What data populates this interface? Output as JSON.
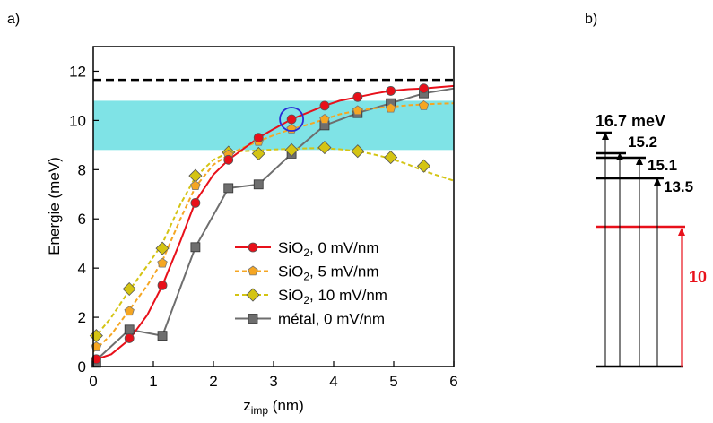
{
  "panel_a_label": "a)",
  "panel_b_label": "b)",
  "chart_data": {
    "type": "line",
    "xlabel_main": "z",
    "xlabel_sub": "imp",
    "xlabel_unit": " (nm)",
    "ylabel": "Energie (meV)",
    "xlim": [
      0,
      6
    ],
    "ylim": [
      0,
      13
    ],
    "xticks": [
      0,
      1,
      2,
      3,
      4,
      5,
      6
    ],
    "yticks": [
      0,
      2,
      4,
      6,
      8,
      10,
      12
    ],
    "grid": false,
    "legend_position": "lower-right",
    "reference_line": {
      "y": 11.65,
      "style": "dashed",
      "color": "#000000"
    },
    "shaded_band": {
      "y0": 8.8,
      "y1": 10.8,
      "color": "#7fe3e6"
    },
    "highlight_circle": {
      "x": 3.3,
      "y": 10.05,
      "color": "#2a2ad6"
    },
    "series": [
      {
        "name_main": "SiO",
        "name_sub": "2",
        "name_rest": ", 0 mV/nm",
        "color": "#e8101a",
        "marker": "circle",
        "line_style": "solid",
        "x": [
          0.05,
          0.6,
          1.15,
          1.7,
          2.25,
          2.75,
          3.3,
          3.85,
          4.4,
          4.95,
          5.5
        ],
        "y": [
          0.3,
          1.15,
          3.3,
          6.65,
          8.4,
          9.3,
          10.05,
          10.6,
          10.95,
          11.2,
          11.3
        ],
        "curve_x": [
          0.0,
          0.3,
          0.6,
          0.9,
          1.15,
          1.45,
          1.7,
          2.0,
          2.25,
          2.5,
          2.75,
          3.0,
          3.3,
          3.6,
          3.85,
          4.1,
          4.4,
          4.7,
          4.95,
          5.25,
          5.5,
          5.75,
          6.0
        ],
        "curve_y": [
          0.25,
          0.5,
          1.1,
          2.1,
          3.3,
          5.1,
          6.7,
          7.8,
          8.4,
          8.85,
          9.3,
          9.65,
          10.05,
          10.35,
          10.6,
          10.8,
          10.95,
          11.1,
          11.2,
          11.27,
          11.3,
          11.35,
          11.4
        ]
      },
      {
        "name_main": "SiO",
        "name_sub": "2",
        "name_rest": ", 5 mV/nm",
        "color": "#f5a623",
        "marker": "pentagon",
        "line_style": "dashed",
        "x": [
          0.05,
          0.6,
          1.15,
          1.7,
          2.25,
          2.75,
          3.3,
          3.85,
          4.4,
          4.95,
          5.5
        ],
        "y": [
          0.8,
          2.25,
          4.2,
          7.35,
          8.6,
          9.15,
          9.65,
          10.05,
          10.4,
          10.5,
          10.6
        ],
        "curve_x": [
          0.0,
          0.3,
          0.6,
          0.9,
          1.15,
          1.45,
          1.7,
          2.0,
          2.25,
          2.5,
          2.75,
          3.0,
          3.3,
          3.6,
          3.85,
          4.1,
          4.4,
          4.7,
          4.95,
          5.25,
          5.5,
          5.75,
          6.0
        ],
        "curve_y": [
          0.6,
          1.3,
          2.3,
          3.3,
          4.3,
          6.0,
          7.3,
          8.2,
          8.6,
          8.9,
          9.15,
          9.4,
          9.65,
          9.85,
          10.05,
          10.25,
          10.4,
          10.5,
          10.55,
          10.62,
          10.65,
          10.68,
          10.7
        ]
      },
      {
        "name_main": "SiO",
        "name_sub": "2",
        "name_rest": ", 10 mV/nm",
        "color": "#d4c413",
        "marker": "diamond",
        "line_style": "dashed",
        "x": [
          0.05,
          0.6,
          1.15,
          1.7,
          2.25,
          2.75,
          3.3,
          3.85,
          4.4,
          4.95,
          5.5
        ],
        "y": [
          1.25,
          3.15,
          4.8,
          7.75,
          8.7,
          8.65,
          8.8,
          8.9,
          8.75,
          8.5,
          8.15
        ],
        "curve_x": [
          0.0,
          0.3,
          0.6,
          0.9,
          1.15,
          1.45,
          1.7,
          2.0,
          2.25,
          2.5,
          2.75,
          3.0,
          3.3,
          3.6,
          3.85,
          4.1,
          4.4,
          4.7,
          4.95,
          5.25,
          5.5,
          5.75,
          6.0
        ],
        "curve_y": [
          1.1,
          2.0,
          3.1,
          4.1,
          5.0,
          6.6,
          7.7,
          8.4,
          8.7,
          8.75,
          8.78,
          8.82,
          8.85,
          8.87,
          8.87,
          8.83,
          8.75,
          8.6,
          8.45,
          8.2,
          7.95,
          7.75,
          7.55
        ]
      },
      {
        "name_main": "métal, 0 mV/nm",
        "name_sub": "",
        "name_rest": "",
        "color": "#6e6e6e",
        "marker": "square",
        "line_style": "solid",
        "x": [
          0.05,
          0.6,
          1.15,
          1.7,
          2.25,
          2.75,
          3.3,
          3.85,
          4.4,
          4.95,
          5.5
        ],
        "y": [
          0.15,
          1.5,
          1.25,
          4.85,
          7.25,
          7.4,
          8.65,
          9.8,
          10.3,
          10.7,
          11.1
        ],
        "curve_x": [
          0.0,
          0.6,
          1.15,
          1.7,
          2.25,
          2.75,
          3.3,
          3.85,
          4.4,
          4.95,
          5.5,
          6.0
        ],
        "curve_y": [
          0.15,
          1.5,
          1.25,
          4.85,
          7.25,
          7.4,
          8.65,
          9.8,
          10.3,
          10.7,
          11.1,
          11.3
        ]
      }
    ]
  },
  "panel_b": {
    "levels": [
      {
        "energy_label": "16.7 meV",
        "color": "#000000",
        "x0": 664,
        "x1": 682,
        "y": 148
      },
      {
        "energy_label": "15.2",
        "color": "#000000",
        "x0": 664,
        "x1": 698,
        "y": 171
      },
      {
        "energy_label": "15.1",
        "color": "#000000",
        "x0": 664,
        "x1": 720,
        "y": 176
      },
      {
        "energy_label": "13.5",
        "color": "#000000",
        "x0": 664,
        "x1": 740,
        "y": 199
      }
    ],
    "red_level_color": "#e8101a",
    "red_label": "10"
  }
}
